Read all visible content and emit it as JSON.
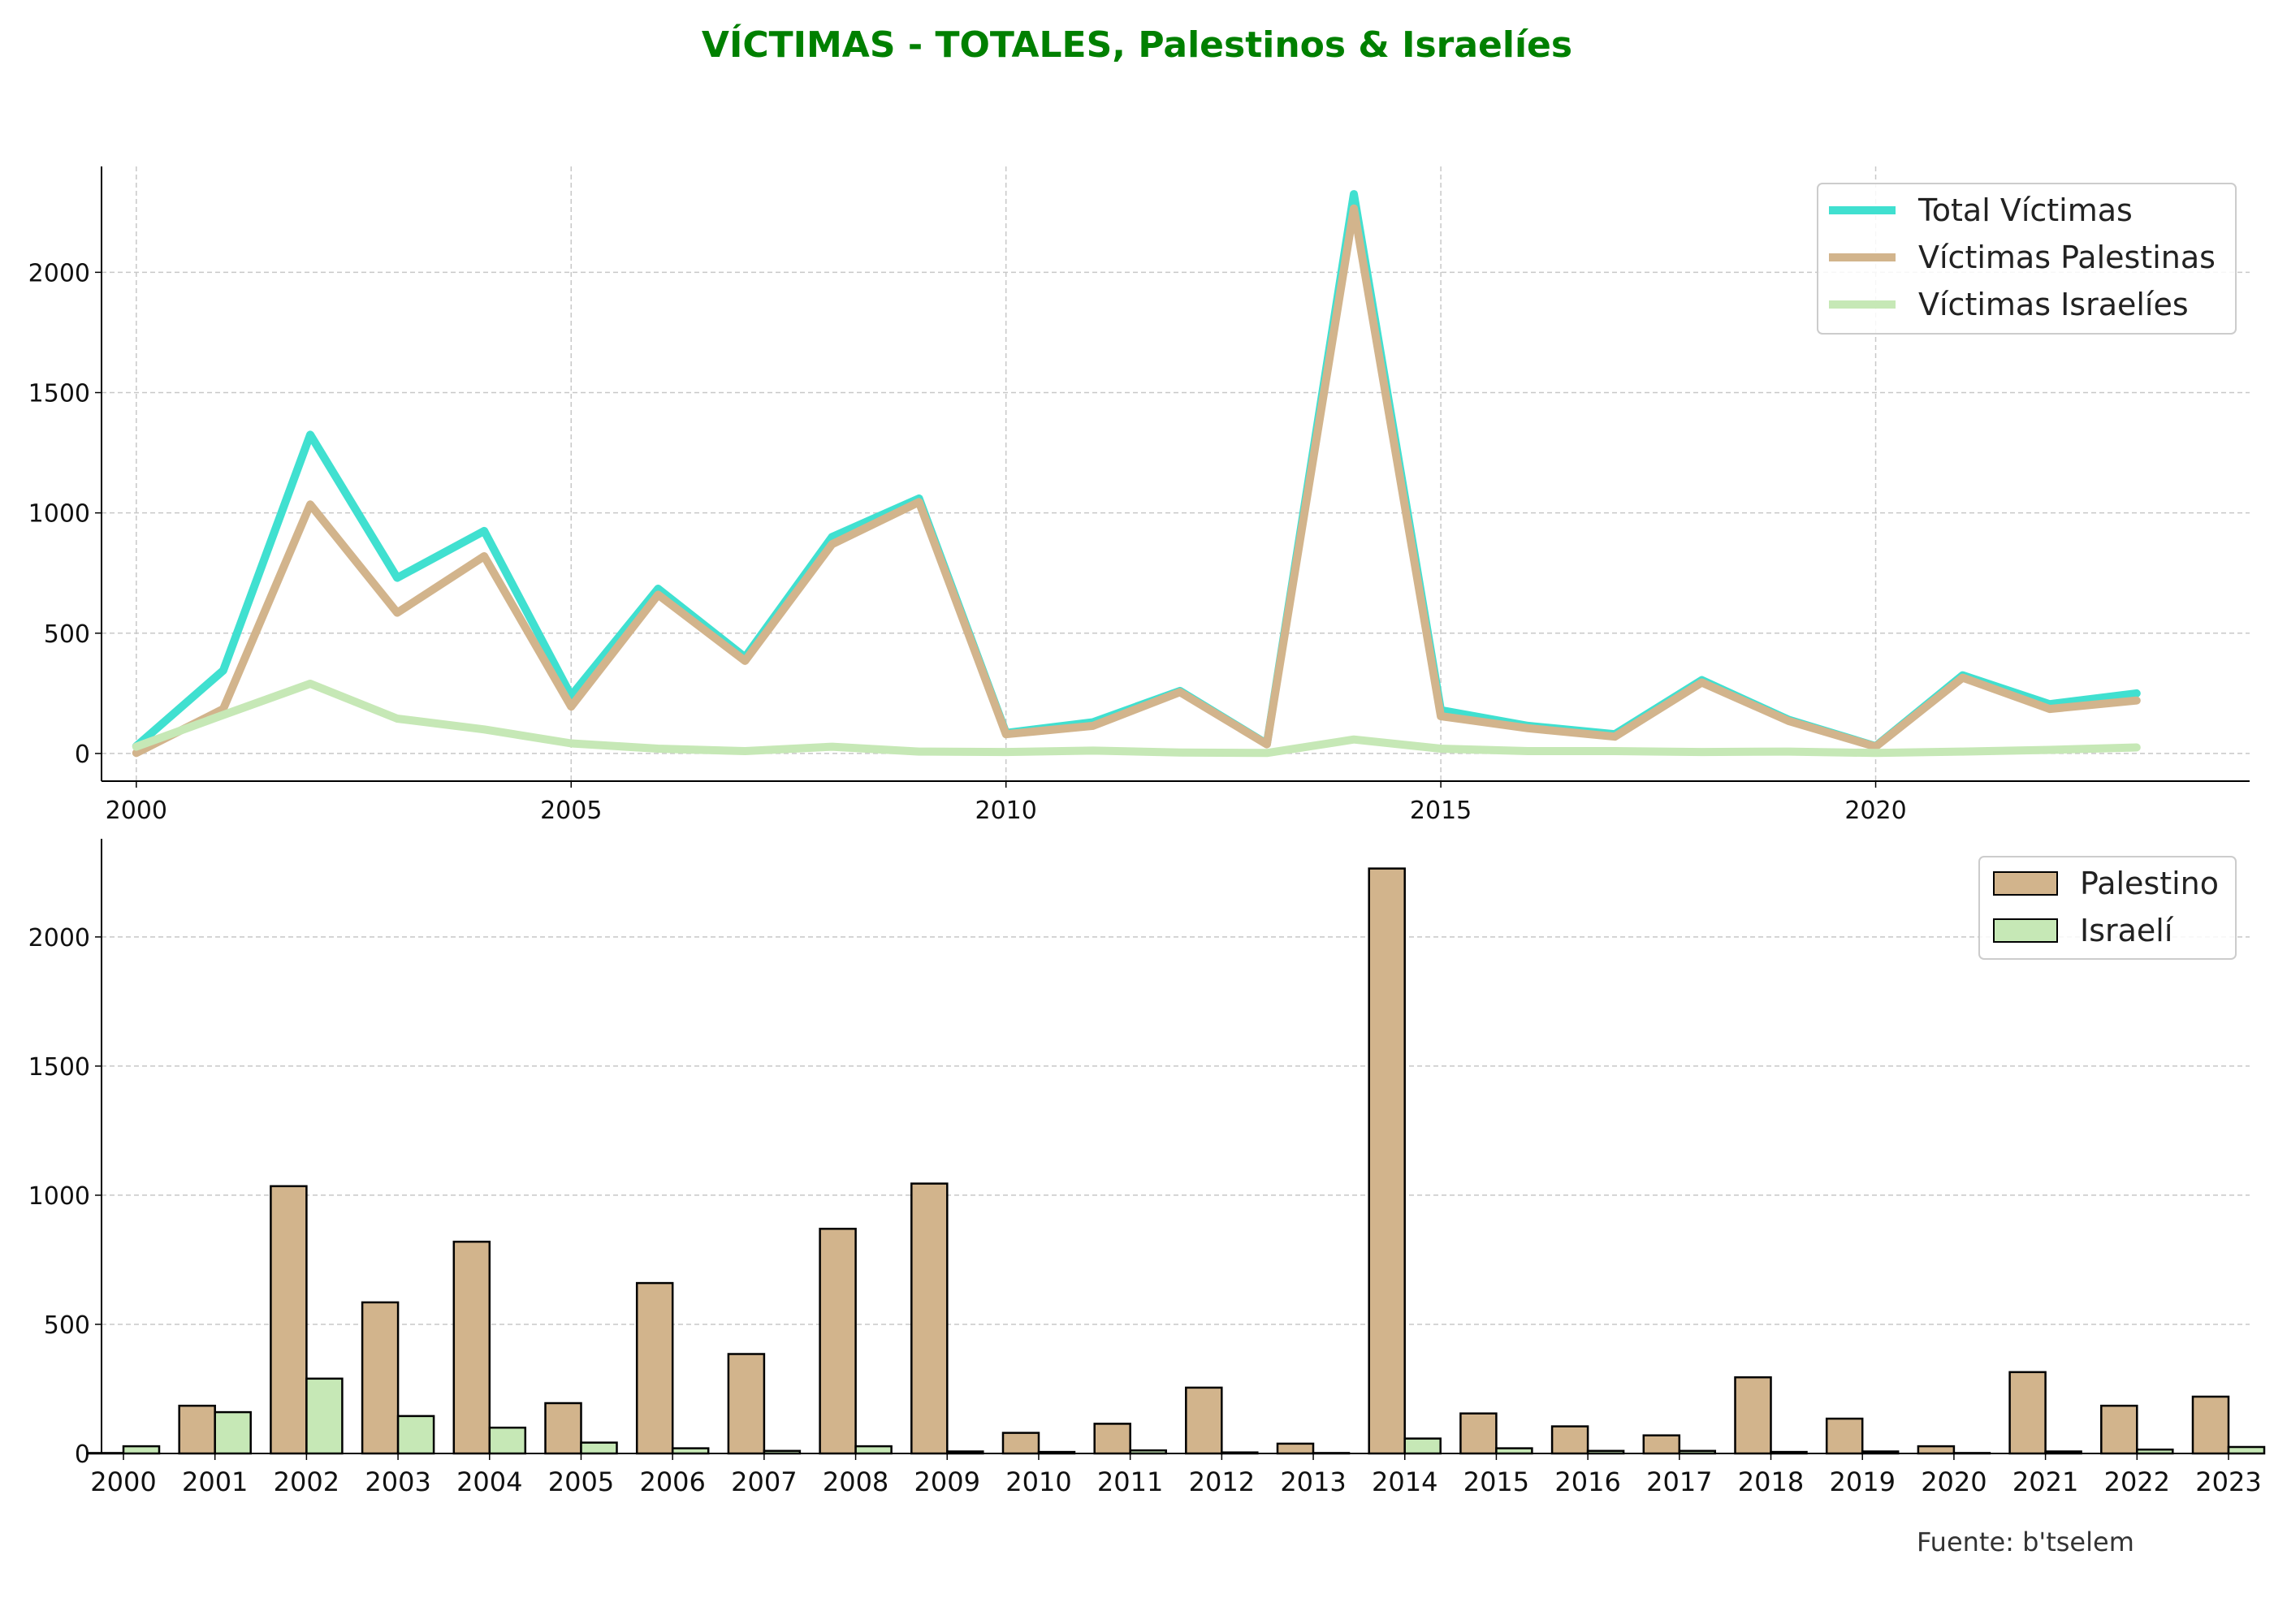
{
  "title": "VÍCTIMAS - TOTALES, Palestinos & Israelíes",
  "source": "Fuente: b'tselem",
  "colors": {
    "title": "#008000",
    "total": "#40E0D0",
    "palestinian": "#D2B48C",
    "israeli": "#C6E8B6"
  },
  "chart_data": [
    {
      "type": "line",
      "title": "",
      "xlabel": "",
      "ylabel": "",
      "xlim": [
        1999.6,
        2024.3
      ],
      "ylim": [
        -115,
        2440
      ],
      "xticks": [
        2000,
        2005,
        2010,
        2015,
        2020
      ],
      "yticks": [
        0,
        500,
        1000,
        1500,
        2000
      ],
      "grid": true,
      "legend_position": "top-right",
      "x": [
        2000,
        2001,
        2002,
        2003,
        2004,
        2005,
        2006,
        2007,
        2008,
        2009,
        2010,
        2011,
        2012,
        2013,
        2014,
        2015,
        2016,
        2017,
        2018,
        2019,
        2020,
        2021,
        2022,
        2023
      ],
      "series": [
        {
          "name": "Total Víctimas",
          "color": "#40E0D0",
          "values": [
            30,
            345,
            1325,
            730,
            925,
            240,
            685,
            400,
            900,
            1060,
            85,
            130,
            260,
            40,
            2325,
            180,
            115,
            80,
            305,
            140,
            30,
            325,
            205,
            250
          ]
        },
        {
          "name": "Víctimas Palestinas",
          "color": "#D2B48C",
          "values": [
            2,
            185,
            1035,
            585,
            820,
            195,
            660,
            385,
            870,
            1045,
            80,
            115,
            255,
            38,
            2265,
            155,
            105,
            70,
            295,
            135,
            28,
            315,
            185,
            220
          ]
        },
        {
          "name": "Víctimas Israelíes",
          "color": "#C6E8B6",
          "values": [
            28,
            160,
            290,
            145,
            100,
            42,
            20,
            10,
            28,
            8,
            6,
            12,
            4,
            2,
            58,
            20,
            10,
            10,
            6,
            8,
            2,
            8,
            15,
            25
          ]
        }
      ]
    },
    {
      "type": "bar",
      "title": "",
      "xlabel": "",
      "ylabel": "",
      "ylim": [
        0,
        2380
      ],
      "yticks": [
        0,
        500,
        1000,
        1500,
        2000
      ],
      "grid": true,
      "legend_position": "top-right",
      "categories": [
        "2000",
        "2001",
        "2002",
        "2003",
        "2004",
        "2005",
        "2006",
        "2007",
        "2008",
        "2009",
        "2010",
        "2011",
        "2012",
        "2013",
        "2014",
        "2015",
        "2016",
        "2017",
        "2018",
        "2019",
        "2020",
        "2021",
        "2022",
        "2023"
      ],
      "series": [
        {
          "name": "Palestino",
          "color": "#D2B48C",
          "values": [
            2,
            185,
            1035,
            585,
            820,
            195,
            660,
            385,
            870,
            1045,
            80,
            115,
            255,
            38,
            2265,
            155,
            105,
            70,
            295,
            135,
            28,
            315,
            185,
            220
          ]
        },
        {
          "name": "Israelí",
          "color": "#C6E8B6",
          "values": [
            28,
            160,
            290,
            145,
            100,
            42,
            20,
            10,
            28,
            8,
            6,
            12,
            4,
            2,
            58,
            20,
            10,
            10,
            6,
            8,
            2,
            8,
            15,
            25
          ]
        }
      ]
    }
  ]
}
